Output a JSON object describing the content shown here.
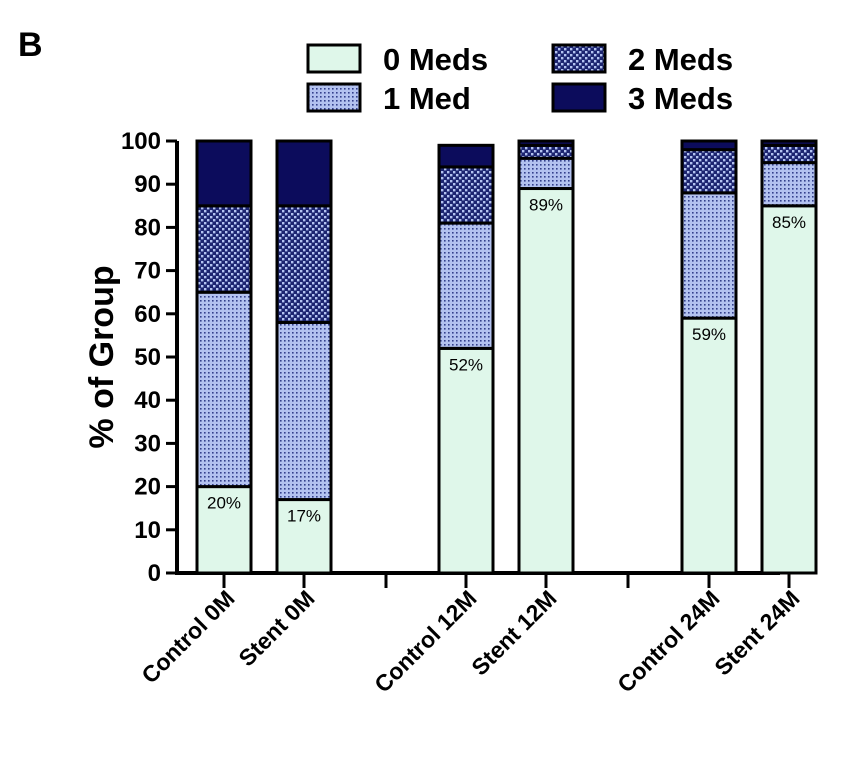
{
  "panel_label": "B",
  "chart_data": {
    "type": "bar",
    "stacked": true,
    "ylabel": "% of Group",
    "ylim": [
      0,
      100
    ],
    "yticks": [
      0,
      10,
      20,
      30,
      40,
      50,
      60,
      70,
      80,
      90,
      100
    ],
    "categories": [
      "Control 0M",
      "Stent 0M",
      "Control 12M",
      "Stent 12M",
      "Control 24M",
      "Stent 24M"
    ],
    "groups": [
      [
        0,
        1
      ],
      [
        2,
        3
      ],
      [
        4,
        5
      ]
    ],
    "series": [
      {
        "name": "0 Meds",
        "color": "#dff7ea",
        "pattern": "none",
        "values": [
          20,
          17,
          52,
          89,
          59,
          85
        ]
      },
      {
        "name": "1 Med",
        "color": "#a9b9ec",
        "pattern": "fine-dots",
        "values": [
          45,
          41,
          29,
          7,
          29,
          10
        ]
      },
      {
        "name": "2 Meds",
        "color": "#3f4a9c",
        "pattern": "checker-dots",
        "values": [
          20,
          27,
          13,
          3,
          10,
          4
        ]
      },
      {
        "name": "3 Meds",
        "color": "#0c0c5c",
        "pattern": "solid",
        "values": [
          15,
          15,
          5,
          1,
          2,
          1
        ]
      }
    ],
    "data_labels": [
      "20%",
      "17%",
      "52%",
      "89%",
      "59%",
      "85%"
    ],
    "legend_position": "top"
  }
}
